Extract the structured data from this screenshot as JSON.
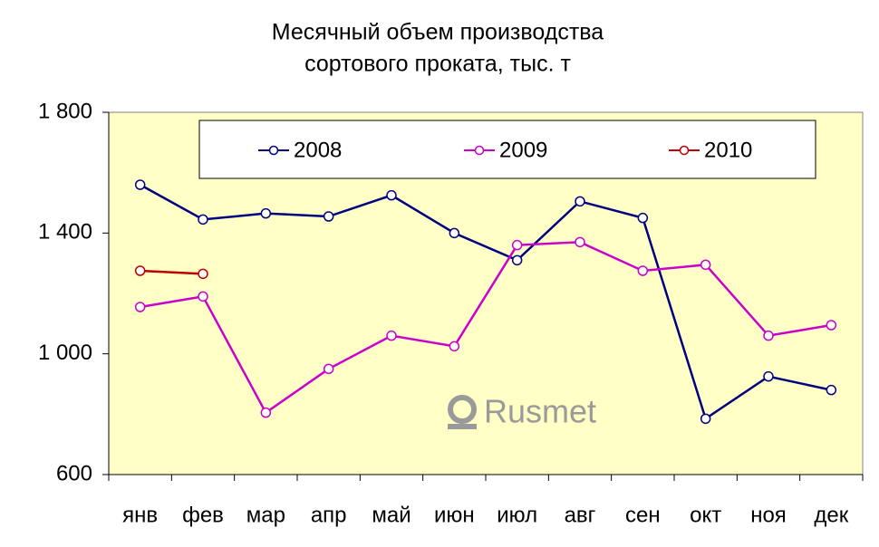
{
  "chart_data": {
    "type": "line",
    "title": [
      "Месячный объем производства",
      "сортового проката, тыс. т"
    ],
    "watermark": "Rusmet",
    "categories": [
      "янв",
      "фев",
      "мар",
      "апр",
      "май",
      "июн",
      "июл",
      "авг",
      "сен",
      "окт",
      "ноя",
      "дек"
    ],
    "series": [
      {
        "name": "2008",
        "color": "#000080",
        "values": [
          1560,
          1445,
          1465,
          1455,
          1525,
          1400,
          1310,
          1505,
          1450,
          785,
          925,
          880
        ]
      },
      {
        "name": "2009",
        "color": "#cc00cc",
        "values": [
          1155,
          1190,
          805,
          950,
          1060,
          1025,
          1360,
          1370,
          1275,
          1295,
          1060,
          1095
        ]
      },
      {
        "name": "2010",
        "color": "#c00000",
        "values": [
          1275,
          1265,
          null,
          null,
          null,
          null,
          null,
          null,
          null,
          null,
          null,
          null
        ]
      }
    ],
    "ylim": [
      600,
      1800
    ],
    "yticks": [
      600,
      {
        "value": 1000,
        "label": "1 000"
      },
      {
        "value": 1400,
        "label": "1 400"
      },
      {
        "value": 1800,
        "label": "1 800"
      }
    ],
    "grid": false,
    "legend": "top"
  }
}
